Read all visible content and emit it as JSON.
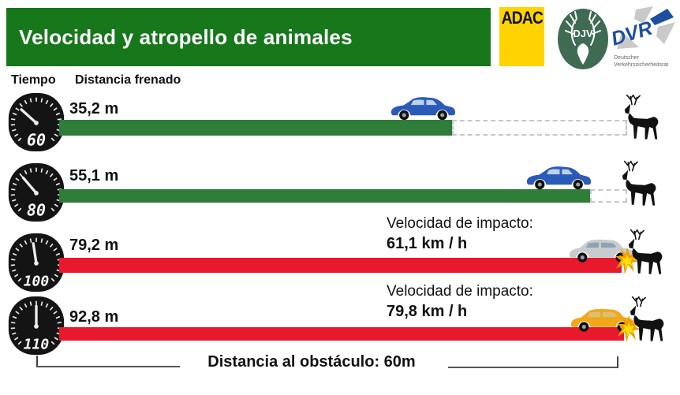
{
  "header": {
    "title": "Velocidad y atropello de animales"
  },
  "logos": {
    "adac": "ADAC",
    "djv": "DJV",
    "dvr": "DVR",
    "dvr_sub1": "Deutscher",
    "dvr_sub2": "Verkehrssicherheitsrat"
  },
  "column_labels": {
    "tiempo": "Tiempo",
    "distancia": "Distancia frenado"
  },
  "rows": [
    {
      "speed": "60",
      "distance": "35,2 m",
      "bar_color": "green",
      "outcome": "stops-before-animal"
    },
    {
      "speed": "80",
      "distance": "55,1 m",
      "bar_color": "green",
      "outcome": "stops-before-animal"
    },
    {
      "speed": "100",
      "distance": "79,2 m",
      "bar_color": "red",
      "impact_label": "Velocidad de impacto:",
      "impact_value": "61,1 km / h",
      "outcome": "collision"
    },
    {
      "speed": "110",
      "distance": "92,8 m",
      "bar_color": "red",
      "impact_label": "Velocidad de impacto:",
      "impact_value": "79,8 km / h",
      "outcome": "collision"
    }
  ],
  "footer": {
    "obstacle_label": "Distancia al obstáculo: 60m"
  },
  "colors": {
    "header_green": "#17771b",
    "bar_green": "#2e7d39",
    "bar_red": "#e8192d",
    "adac_yellow": "#ffd300",
    "djv_green": "#3e6b51",
    "dvr_blue": "#1d4f9e"
  },
  "chart_data": {
    "type": "bar",
    "title": "Velocidad y atropello de animales",
    "categories_kmh": [
      60,
      80,
      100,
      110
    ],
    "series": [
      {
        "name": "Distancia frenado (m)",
        "values": [
          35.2,
          55.1,
          79.2,
          92.8
        ]
      },
      {
        "name": "Velocidad de impacto (km/h)",
        "values": [
          0,
          0,
          61.1,
          79.8
        ]
      }
    ],
    "obstacle_distance_m": 60,
    "xlabel": "Distancia frenado",
    "ylabel": "Tiempo (velocidad inicial km/h)",
    "legend_position": "none",
    "grid": false,
    "bar_colors": [
      "#2e7d39",
      "#2e7d39",
      "#e8192d",
      "#e8192d"
    ]
  }
}
